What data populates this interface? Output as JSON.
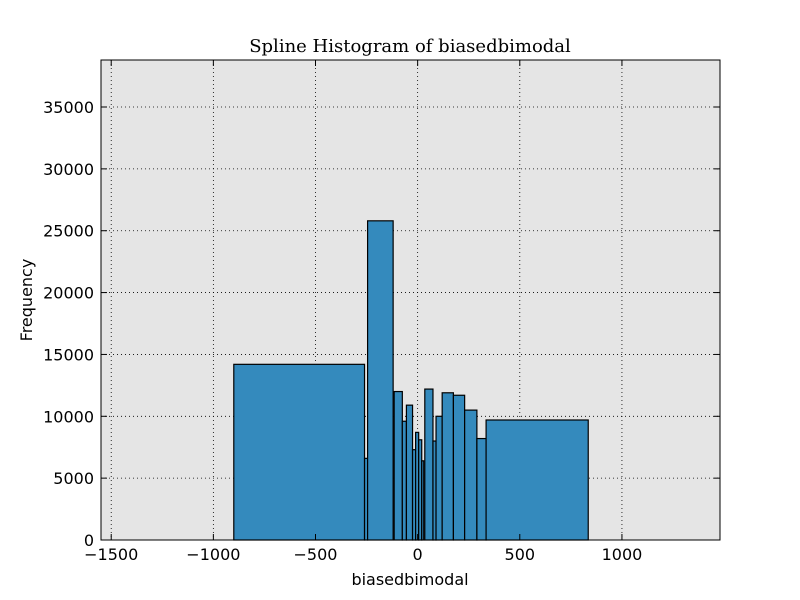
{
  "chart_data": {
    "type": "bar",
    "title": "Spline Histogram of biasedbimodal",
    "xlabel": "biasedbimodal",
    "ylabel": "Frequency",
    "xlim": [
      -1550,
      1480
    ],
    "ylim": [
      0,
      38800
    ],
    "xticks": [
      -1500,
      -1000,
      -500,
      0,
      500,
      1000
    ],
    "xtick_labels": [
      "−1500",
      "−1000",
      "−500",
      "0",
      "500",
      "1000"
    ],
    "yticks": [
      0,
      5000,
      10000,
      15000,
      20000,
      25000,
      30000,
      35000
    ],
    "ytick_labels": [
      "0",
      "5000",
      "10000",
      "15000",
      "20000",
      "25000",
      "30000",
      "35000"
    ],
    "grid": true,
    "bar_color": "#348ABD",
    "edge_color": "#000000",
    "plot_background": "#E5E5E5",
    "bins": [
      {
        "x0": -900,
        "x1": -260,
        "value": 14200
      },
      {
        "x0": -260,
        "x1": -245,
        "value": 6600
      },
      {
        "x0": -245,
        "x1": -120,
        "value": 25800
      },
      {
        "x0": -115,
        "x1": -75,
        "value": 12000
      },
      {
        "x0": -75,
        "x1": -55,
        "value": 9600
      },
      {
        "x0": -55,
        "x1": -25,
        "value": 10900
      },
      {
        "x0": -25,
        "x1": -10,
        "value": 7300
      },
      {
        "x0": -10,
        "x1": 5,
        "value": 8700
      },
      {
        "x0": 5,
        "x1": 20,
        "value": 8100
      },
      {
        "x0": 20,
        "x1": 30,
        "value": 6400
      },
      {
        "x0": 35,
        "x1": 75,
        "value": 12200
      },
      {
        "x0": 75,
        "x1": 90,
        "value": 8000
      },
      {
        "x0": 90,
        "x1": 120,
        "value": 10000
      },
      {
        "x0": 120,
        "x1": 175,
        "value": 11900
      },
      {
        "x0": 175,
        "x1": 230,
        "value": 11700
      },
      {
        "x0": 230,
        "x1": 290,
        "value": 10500
      },
      {
        "x0": 290,
        "x1": 335,
        "value": 8200
      },
      {
        "x0": 335,
        "x1": 835,
        "value": 9700
      }
    ]
  }
}
